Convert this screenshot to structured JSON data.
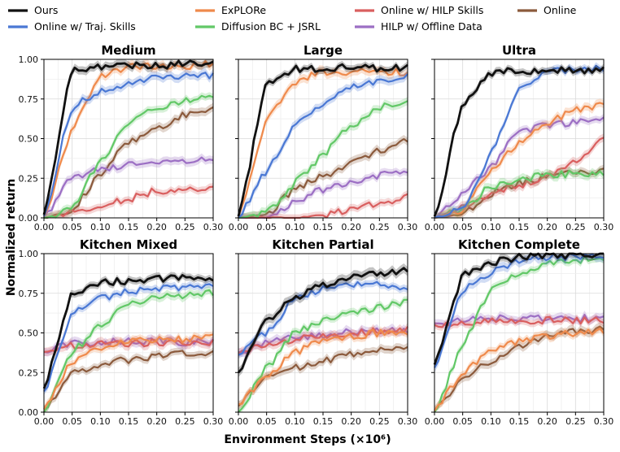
{
  "chart_data": {
    "type": "line",
    "xlabel": "Environment Steps (×10⁶)",
    "ylabel": "Normalized return",
    "xlim": [
      0.0,
      0.3
    ],
    "ylim": [
      0.0,
      1.0
    ],
    "xticks": [
      "0.00",
      "0.05",
      "0.10",
      "0.15",
      "0.20",
      "0.25",
      "0.30"
    ],
    "yticks": [
      "0.00",
      "0.25",
      "0.50",
      "0.75",
      "1.00"
    ],
    "x": [
      0.0,
      0.05,
      0.1,
      0.15,
      0.2,
      0.25,
      0.3
    ],
    "grid": true,
    "legend_position": "top",
    "legend": [
      {
        "name": "Ours",
        "color": "#111111"
      },
      {
        "name": "Online w/ Traj. Skills",
        "color": "#4a78d4"
      },
      {
        "name": "ExPLORe",
        "color": "#ef8a4c"
      },
      {
        "name": "Diffusion BC + JSRL",
        "color": "#62c867"
      },
      {
        "name": "Online w/ HILP Skills",
        "color": "#d95f5f"
      },
      {
        "name": "HILP w/ Offline Data",
        "color": "#9c6fc4"
      },
      {
        "name": "Online",
        "color": "#8b5a3c"
      }
    ],
    "panels": [
      {
        "title": "Medium",
        "series": [
          {
            "name": "Ours",
            "values": [
              0.02,
              0.93,
              0.95,
              0.96,
              0.96,
              0.97,
              0.98
            ]
          },
          {
            "name": "Online w/ Traj. Skills",
            "values": [
              0.01,
              0.7,
              0.8,
              0.85,
              0.88,
              0.9,
              0.9
            ]
          },
          {
            "name": "ExPLORe",
            "values": [
              0.01,
              0.55,
              0.9,
              0.95,
              0.96,
              0.96,
              0.97
            ]
          },
          {
            "name": "Diffusion BC + JSRL",
            "values": [
              0.0,
              0.06,
              0.36,
              0.6,
              0.7,
              0.74,
              0.77
            ]
          },
          {
            "name": "Online w/ HILP Skills",
            "values": [
              0.0,
              0.04,
              0.08,
              0.12,
              0.17,
              0.18,
              0.18
            ]
          },
          {
            "name": "HILP w/ Offline Data",
            "values": [
              0.0,
              0.26,
              0.3,
              0.33,
              0.35,
              0.36,
              0.36
            ]
          },
          {
            "name": "Online",
            "values": [
              0.0,
              0.05,
              0.28,
              0.48,
              0.57,
              0.65,
              0.7
            ]
          }
        ]
      },
      {
        "title": "Large",
        "series": [
          {
            "name": "Ours",
            "values": [
              0.01,
              0.85,
              0.94,
              0.94,
              0.95,
              0.94,
              0.95
            ]
          },
          {
            "name": "Online w/ Traj. Skills",
            "values": [
              0.0,
              0.3,
              0.58,
              0.72,
              0.82,
              0.87,
              0.9
            ]
          },
          {
            "name": "ExPLORe",
            "values": [
              0.0,
              0.62,
              0.86,
              0.92,
              0.92,
              0.92,
              0.92
            ]
          },
          {
            "name": "Diffusion BC + JSRL",
            "values": [
              0.0,
              0.03,
              0.22,
              0.4,
              0.58,
              0.7,
              0.73
            ]
          },
          {
            "name": "Online w/ HILP Skills",
            "values": [
              0.0,
              0.0,
              0.0,
              0.02,
              0.05,
              0.09,
              0.13
            ]
          },
          {
            "name": "HILP w/ Offline Data",
            "values": [
              0.0,
              0.0,
              0.1,
              0.18,
              0.22,
              0.27,
              0.3
            ]
          },
          {
            "name": "Online",
            "values": [
              0.0,
              0.02,
              0.18,
              0.26,
              0.35,
              0.42,
              0.49
            ]
          }
        ]
      },
      {
        "title": "Ultra",
        "series": [
          {
            "name": "Ours",
            "values": [
              0.01,
              0.72,
              0.91,
              0.93,
              0.93,
              0.93,
              0.93
            ]
          },
          {
            "name": "Online w/ Traj. Skills",
            "values": [
              0.0,
              0.05,
              0.4,
              0.82,
              0.93,
              0.93,
              0.94
            ]
          },
          {
            "name": "ExPLORe",
            "values": [
              0.0,
              0.05,
              0.3,
              0.48,
              0.6,
              0.68,
              0.72
            ]
          },
          {
            "name": "Diffusion BC + JSRL",
            "values": [
              0.0,
              0.05,
              0.2,
              0.24,
              0.27,
              0.28,
              0.28
            ]
          },
          {
            "name": "Online w/ HILP Skills",
            "values": [
              0.0,
              0.08,
              0.15,
              0.2,
              0.27,
              0.36,
              0.5
            ]
          },
          {
            "name": "HILP w/ Offline Data",
            "values": [
              0.0,
              0.15,
              0.32,
              0.55,
              0.58,
              0.6,
              0.63
            ]
          },
          {
            "name": "Online",
            "values": [
              0.0,
              0.02,
              0.15,
              0.22,
              0.26,
              0.28,
              0.29
            ]
          }
        ]
      },
      {
        "title": "Kitchen Mixed",
        "series": [
          {
            "name": "Ours",
            "values": [
              0.15,
              0.75,
              0.82,
              0.83,
              0.84,
              0.85,
              0.85
            ]
          },
          {
            "name": "Online w/ Traj. Skills",
            "values": [
              0.13,
              0.62,
              0.72,
              0.76,
              0.78,
              0.79,
              0.79
            ]
          },
          {
            "name": "ExPLORe",
            "values": [
              0.02,
              0.32,
              0.4,
              0.44,
              0.46,
              0.46,
              0.47
            ]
          },
          {
            "name": "Diffusion BC + JSRL",
            "values": [
              0.0,
              0.38,
              0.55,
              0.68,
              0.72,
              0.74,
              0.75
            ]
          },
          {
            "name": "Online w/ HILP Skills",
            "values": [
              0.38,
              0.42,
              0.43,
              0.43,
              0.44,
              0.43,
              0.44
            ]
          },
          {
            "name": "HILP w/ Offline Data",
            "values": [
              0.38,
              0.43,
              0.44,
              0.45,
              0.45,
              0.44,
              0.44
            ]
          },
          {
            "name": "Online",
            "values": [
              0.02,
              0.25,
              0.3,
              0.33,
              0.35,
              0.37,
              0.38
            ]
          }
        ]
      },
      {
        "title": "Kitchen Partial",
        "series": [
          {
            "name": "Ours",
            "values": [
              0.25,
              0.58,
              0.72,
              0.8,
              0.86,
              0.88,
              0.9
            ]
          },
          {
            "name": "Online w/ Traj. Skills",
            "values": [
              0.36,
              0.5,
              0.72,
              0.78,
              0.8,
              0.8,
              0.77
            ]
          },
          {
            "name": "ExPLORe",
            "values": [
              0.05,
              0.22,
              0.38,
              0.45,
              0.48,
              0.5,
              0.5
            ]
          },
          {
            "name": "Diffusion BC + JSRL",
            "values": [
              0.0,
              0.28,
              0.5,
              0.58,
              0.62,
              0.66,
              0.69
            ]
          },
          {
            "name": "Online w/ HILP Skills",
            "values": [
              0.37,
              0.43,
              0.46,
              0.48,
              0.5,
              0.51,
              0.52
            ]
          },
          {
            "name": "HILP w/ Offline Data",
            "values": [
              0.38,
              0.44,
              0.47,
              0.49,
              0.51,
              0.52,
              0.52
            ]
          },
          {
            "name": "Online",
            "values": [
              0.04,
              0.22,
              0.28,
              0.32,
              0.36,
              0.4,
              0.42
            ]
          }
        ]
      },
      {
        "title": "Kitchen Complete",
        "series": [
          {
            "name": "Ours",
            "values": [
              0.3,
              0.86,
              0.94,
              0.98,
              0.99,
              0.99,
              0.99
            ]
          },
          {
            "name": "Online w/ Traj. Skills",
            "values": [
              0.28,
              0.78,
              0.88,
              0.95,
              0.98,
              0.98,
              0.98
            ]
          },
          {
            "name": "ExPLORe",
            "values": [
              0.01,
              0.25,
              0.38,
              0.45,
              0.48,
              0.5,
              0.51
            ]
          },
          {
            "name": "Diffusion BC + JSRL",
            "values": [
              0.0,
              0.42,
              0.78,
              0.88,
              0.94,
              0.96,
              0.97
            ]
          },
          {
            "name": "Online w/ HILP Skills",
            "values": [
              0.55,
              0.57,
              0.57,
              0.58,
              0.58,
              0.58,
              0.58
            ]
          },
          {
            "name": "HILP w/ Offline Data",
            "values": [
              0.56,
              0.58,
              0.59,
              0.59,
              0.59,
              0.59,
              0.6
            ]
          },
          {
            "name": "Online",
            "values": [
              0.01,
              0.22,
              0.32,
              0.42,
              0.48,
              0.51,
              0.53
            ]
          }
        ]
      }
    ]
  }
}
